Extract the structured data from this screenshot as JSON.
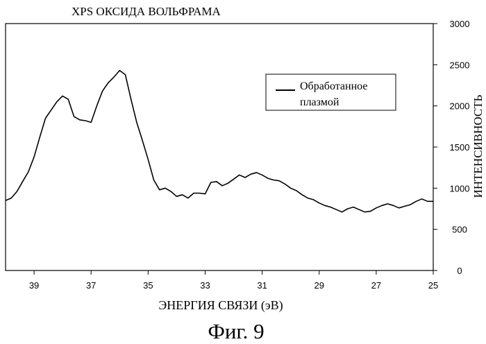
{
  "chart_data": {
    "type": "line",
    "title": "XPS ОКСИДА ВОЛЬФРАМА",
    "xlabel": "ЭНЕРГИЯ СВЯЗИ (эВ)",
    "ylabel": "ИНТЕНСИВНОСТЬ",
    "caption": "Фиг. 9",
    "xlim": [
      40,
      25
    ],
    "ylim": [
      0,
      3000
    ],
    "x_reversed": true,
    "x_ticks": [
      39,
      37,
      35,
      33,
      31,
      29,
      27,
      25
    ],
    "y_ticks": [
      0,
      500,
      1000,
      1500,
      2000,
      2500,
      3000
    ],
    "y_axis_side": "right",
    "grid": false,
    "legend_position": "top-right",
    "series": [
      {
        "name": "Обработанное плазмой",
        "color": "#000000",
        "x": [
          40.0,
          39.8,
          39.6,
          39.4,
          39.2,
          39.0,
          38.8,
          38.6,
          38.4,
          38.2,
          38.0,
          37.8,
          37.6,
          37.4,
          37.2,
          37.0,
          36.8,
          36.6,
          36.4,
          36.2,
          36.0,
          35.8,
          35.6,
          35.4,
          35.2,
          35.0,
          34.8,
          34.6,
          34.4,
          34.2,
          34.0,
          33.8,
          33.6,
          33.4,
          33.2,
          33.0,
          32.8,
          32.6,
          32.4,
          32.2,
          32.0,
          31.8,
          31.6,
          31.4,
          31.2,
          31.0,
          30.8,
          30.6,
          30.4,
          30.2,
          30.0,
          29.8,
          29.6,
          29.4,
          29.2,
          29.0,
          28.8,
          28.6,
          28.4,
          28.2,
          28.0,
          27.8,
          27.6,
          27.4,
          27.2,
          27.0,
          26.8,
          26.6,
          26.4,
          26.2,
          26.0,
          25.8,
          25.6,
          25.4,
          25.2,
          25.0
        ],
        "y": [
          850,
          880,
          960,
          1080,
          1200,
          1380,
          1620,
          1850,
          1950,
          2050,
          2120,
          2080,
          1870,
          1830,
          1820,
          1800,
          2000,
          2180,
          2280,
          2350,
          2430,
          2380,
          2080,
          1800,
          1580,
          1350,
          1100,
          980,
          1000,
          960,
          900,
          920,
          880,
          940,
          940,
          930,
          1070,
          1080,
          1030,
          1060,
          1110,
          1160,
          1130,
          1170,
          1190,
          1160,
          1120,
          1100,
          1090,
          1050,
          1000,
          970,
          920,
          880,
          860,
          820,
          790,
          770,
          740,
          710,
          750,
          770,
          740,
          710,
          720,
          760,
          790,
          810,
          790,
          760,
          780,
          800,
          840,
          870,
          840,
          840
        ]
      }
    ]
  }
}
